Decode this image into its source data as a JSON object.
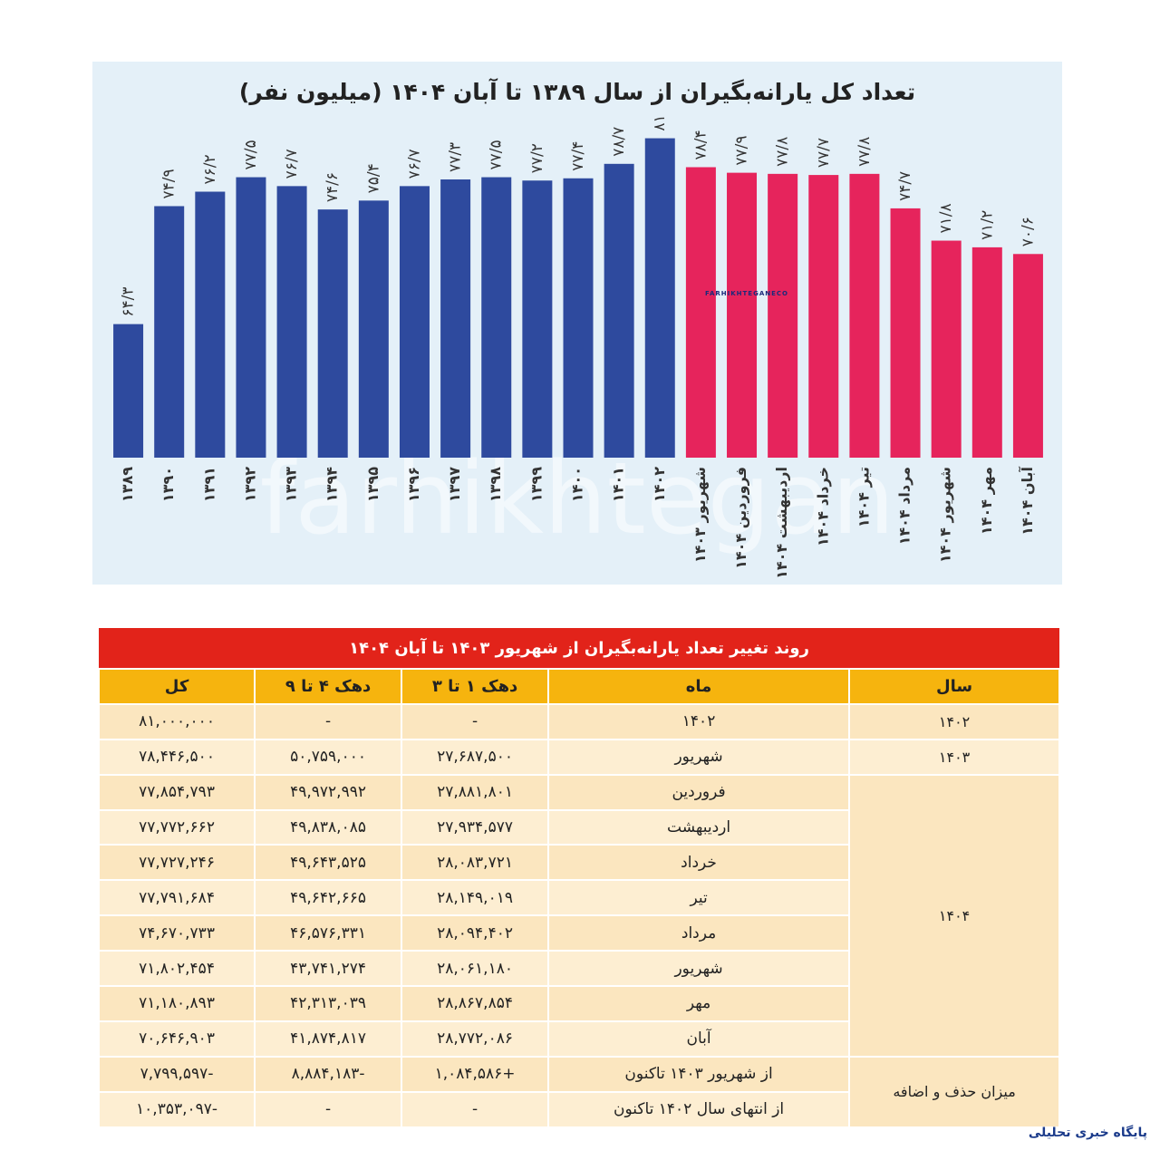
{
  "chart_data": {
    "type": "bar",
    "title": "تعداد کل یارانه‌بگیران از سال ۱۳۸۹ تا آبان ۱۴۰۴ (میلیون نفر)",
    "categories": [
      "۱۳۸۹",
      "۱۳۹۰",
      "۱۳۹۱",
      "۱۳۹۲",
      "۱۳۹۳",
      "۱۳۹۴",
      "۱۳۹۵",
      "۱۳۹۶",
      "۱۳۹۷",
      "۱۳۹۸",
      "۱۳۹۹",
      "۱۴۰۰",
      "۱۴۰۱",
      "۱۴۰۲",
      "شهریور ۱۴۰۳",
      "فروردین ۱۴۰۴",
      "اردیبهشت ۱۴۰۴",
      "خرداد ۱۴۰۴",
      "تیر ۱۴۰۴",
      "مرداد ۱۴۰۴",
      "شهریور ۱۴۰۴",
      "مهر ۱۴۰۴",
      "آبان ۱۴۰۴"
    ],
    "values": [
      64.3,
      74.9,
      76.2,
      77.5,
      76.7,
      74.6,
      75.4,
      76.7,
      77.3,
      77.5,
      77.2,
      77.4,
      78.7,
      81,
      78.4,
      77.9,
      77.8,
      77.7,
      77.8,
      74.7,
      71.8,
      71.2,
      70.6
    ],
    "value_labels": [
      "۶۴/۳",
      "۷۴/۹",
      "۷۶/۲",
      "۷۷/۵",
      "۷۶/۷",
      "۷۴/۶",
      "۷۵/۴",
      "۷۶/۷",
      "۷۷/۳",
      "۷۷/۵",
      "۷۷/۲",
      "۷۷/۴",
      "۷۸/۷",
      "۸۱",
      "۷۸/۴",
      "۷۷/۹",
      "۷۷/۸",
      "۷۷/۷",
      "۷۷/۸",
      "۷۴/۷",
      "۷۱/۸",
      "۷۱/۲",
      "۷۰/۶"
    ],
    "colors": [
      "#2e4a9e",
      "#2e4a9e",
      "#2e4a9e",
      "#2e4a9e",
      "#2e4a9e",
      "#2e4a9e",
      "#2e4a9e",
      "#2e4a9e",
      "#2e4a9e",
      "#2e4a9e",
      "#2e4a9e",
      "#2e4a9e",
      "#2e4a9e",
      "#2e4a9e",
      "#e6245c",
      "#e6245c",
      "#e6245c",
      "#e6245c",
      "#e6245c",
      "#e6245c",
      "#e6245c",
      "#e6245c",
      "#e6245c"
    ],
    "ylim": [
      52.3,
      83
    ]
  },
  "table": {
    "title": "روند تغییر تعداد یارانه‌بگیران از شهریور ۱۴۰۳ تا آبان ۱۴۰۴",
    "headers": [
      "سال",
      "ماه",
      "دهک ۱ تا ۳",
      "دهک ۴ تا ۹",
      "کل"
    ],
    "groups": [
      {
        "year": "۱۴۰۲",
        "rows": [
          [
            "۱۴۰۲",
            "-",
            "-",
            "۸۱,۰۰۰,۰۰۰"
          ]
        ]
      },
      {
        "year": "۱۴۰۳",
        "rows": [
          [
            "شهریور",
            "۲۷,۶۸۷,۵۰۰",
            "۵۰,۷۵۹,۰۰۰",
            "۷۸,۴۴۶,۵۰۰"
          ]
        ]
      },
      {
        "year": "۱۴۰۴",
        "rows": [
          [
            "فروردین",
            "۲۷,۸۸۱,۸۰۱",
            "۴۹,۹۷۲,۹۹۲",
            "۷۷,۸۵۴,۷۹۳"
          ],
          [
            "اردیبهشت",
            "۲۷,۹۳۴,۵۷۷",
            "۴۹,۸۳۸,۰۸۵",
            "۷۷,۷۷۲,۶۶۲"
          ],
          [
            "خرداد",
            "۲۸,۰۸۳,۷۲۱",
            "۴۹,۶۴۳,۵۲۵",
            "۷۷,۷۲۷,۲۴۶"
          ],
          [
            "تیر",
            "۲۸,۱۴۹,۰۱۹",
            "۴۹,۶۴۲,۶۶۵",
            "۷۷,۷۹۱,۶۸۴"
          ],
          [
            "مرداد",
            "۲۸,۰۹۴,۴۰۲",
            "۴۶,۵۷۶,۳۳۱",
            "۷۴,۶۷۰,۷۳۳"
          ],
          [
            "شهریور",
            "۲۸,۰۶۱,۱۸۰",
            "۴۳,۷۴۱,۲۷۴",
            "۷۱,۸۰۲,۴۵۴"
          ],
          [
            "مهر",
            "۲۸,۸۶۷,۸۵۴",
            "۴۲,۳۱۳,۰۳۹",
            "۷۱,۱۸۰,۸۹۳"
          ],
          [
            "آبان",
            "۲۸,۷۷۲,۰۸۶",
            "۴۱,۸۷۴,۸۱۷",
            "۷۰,۶۴۶,۹۰۳"
          ]
        ]
      },
      {
        "year": "میزان حذف و اضافه",
        "rows": [
          [
            "از شهریور ۱۴۰۳ تاکنون",
            "+۱,۰۸۴,۵۸۶",
            "-۸,۸۸۴,۱۸۳",
            "-۷,۷۹۹,۵۹۷"
          ],
          [
            "از انتهای سال ۱۴۰۲ تاکنون",
            "-",
            "-",
            "-۱۰,۳۵۳,۰۹۷"
          ]
        ]
      }
    ]
  },
  "brand": {
    "logo_text": "FARHIKHTEGANECO",
    "watermark": "farhikhtegan",
    "tagline": "پایگاه خبری تحلیلی"
  }
}
